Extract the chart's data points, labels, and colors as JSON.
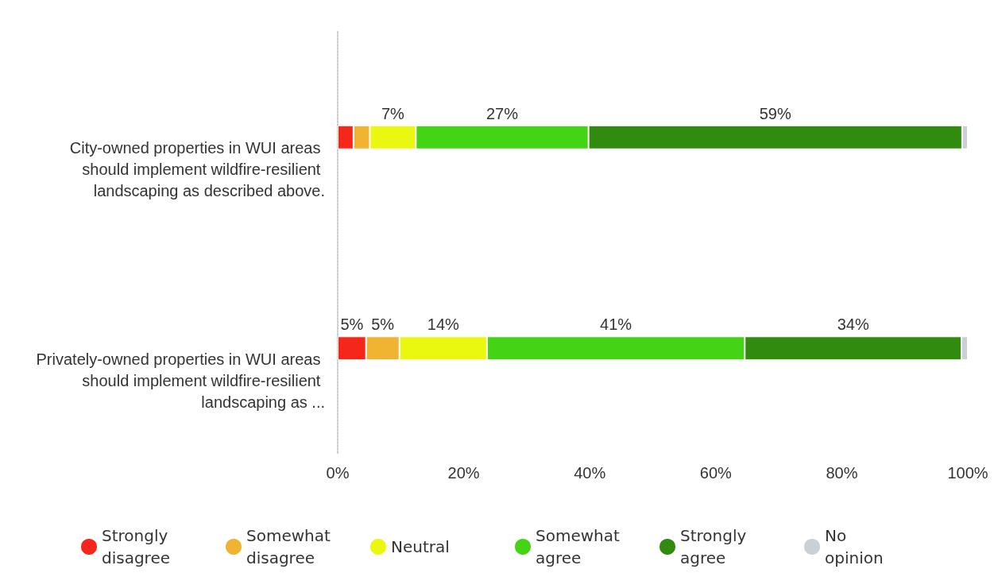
{
  "chart_data": {
    "type": "bar",
    "orientation": "horizontal",
    "stacked": true,
    "categories": [
      "City-owned properties in WUI areas should implement wildfire-resilient landscaping as described above.",
      "Privately-owned properties in WUI areas should implement wildfire-resilient landscaping as ..."
    ],
    "series": [
      {
        "name": "Strongly disagree",
        "color": "#f5271a",
        "values": [
          2.5,
          4.5
        ],
        "value_labels": [
          null,
          "5%"
        ]
      },
      {
        "name": "Somewhat disagree",
        "color": "#f0b432",
        "values": [
          2.6,
          5.3
        ],
        "value_labels": [
          null,
          "5%"
        ]
      },
      {
        "name": "Neutral",
        "color": "#eaf70e",
        "values": [
          7.3,
          13.9
        ],
        "value_labels": [
          "7%",
          "14%"
        ]
      },
      {
        "name": "Somewhat agree",
        "color": "#44d415",
        "values": [
          27.4,
          40.9
        ],
        "value_labels": [
          "27%",
          "41%"
        ]
      },
      {
        "name": "Strongly agree",
        "color": "#318b0f",
        "values": [
          59.3,
          34.4
        ],
        "value_labels": [
          "59%",
          "34%"
        ]
      },
      {
        "name": "No opinion",
        "color": "#c9d0d6",
        "values": [
          0.9,
          1.0
        ],
        "value_labels": [
          null,
          null
        ]
      }
    ],
    "xlim": [
      0,
      100
    ],
    "xticks": [
      {
        "value": 0,
        "label": "0%"
      },
      {
        "value": 20,
        "label": "20%"
      },
      {
        "value": 40,
        "label": "40%"
      },
      {
        "value": 60,
        "label": "60%"
      },
      {
        "value": 80,
        "label": "80%"
      },
      {
        "value": 100,
        "label": "100%"
      }
    ],
    "grid": false,
    "legend": "bottom"
  }
}
